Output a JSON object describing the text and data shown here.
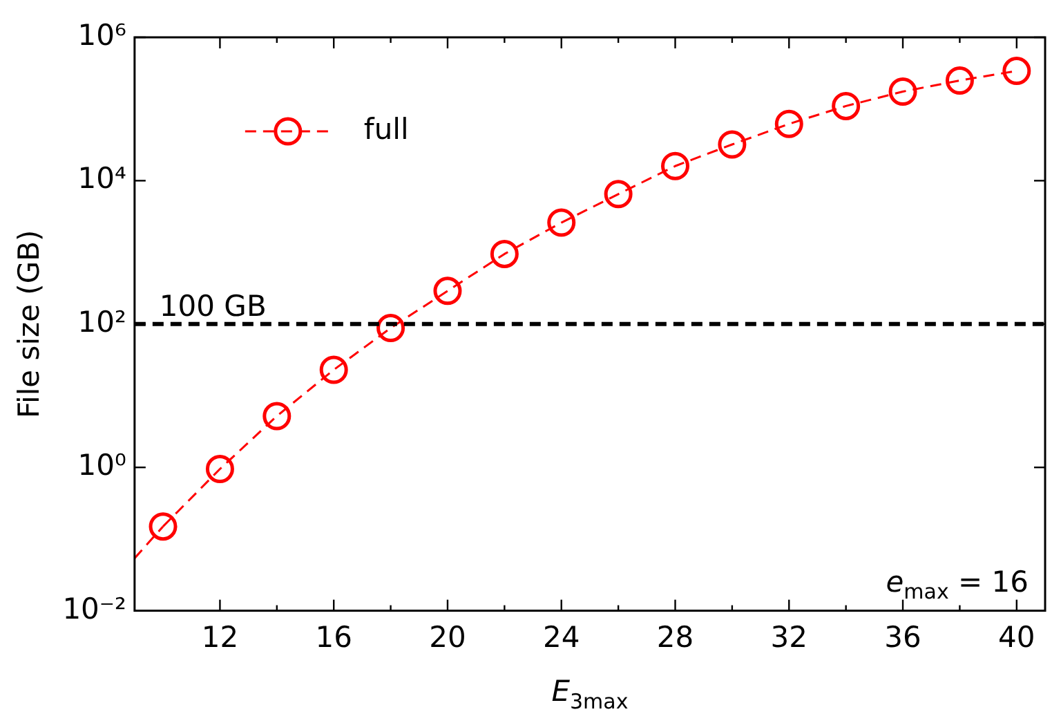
{
  "chart_data": {
    "type": "line",
    "xlabel": "E$_{3max}$",
    "ylabel": "File size (GB)",
    "x": [
      10,
      12,
      14,
      16,
      18,
      20,
      22,
      24,
      26,
      28,
      30,
      32,
      34,
      36,
      38,
      40
    ],
    "series": [
      {
        "name": "full",
        "color": "#ff0000",
        "values": [
          0.15,
          0.95,
          5.2,
          23,
          88,
          290,
          950,
          2600,
          6500,
          16000,
          32000,
          62000,
          110000,
          175000,
          250000,
          340000
        ],
        "marker": "circle",
        "line_style": "dashed"
      },
      {
        "type": "line",
        "color": "#ff0000",
        "x": [
          9,
          10
        ],
        "values": [
          0.054,
          0.15
        ],
        "marker": "none",
        "line_style": "dashed"
      }
    ],
    "xlim": [
      9,
      41
    ],
    "xticks": [
      12,
      16,
      20,
      24,
      28,
      32,
      36,
      40
    ],
    "ylim": [
      0.01,
      1000000
    ],
    "yticks": [
      {
        "value": 0.01,
        "label": "10⁻²"
      },
      {
        "value": 1,
        "label": "10⁰"
      },
      {
        "value": 100,
        "label": "10²"
      },
      {
        "value": 10000,
        "label": "10⁴"
      },
      {
        "value": 1000000,
        "label": "10⁶"
      }
    ],
    "log": "y",
    "grid": false,
    "legend": "top left",
    "ref_lines": [
      {
        "axis": "y",
        "value": 100,
        "label": "100 GB",
        "color": "#000000",
        "line_style": "dashed"
      }
    ],
    "annotations": [
      "e$_{max}$ = 16"
    ]
  }
}
